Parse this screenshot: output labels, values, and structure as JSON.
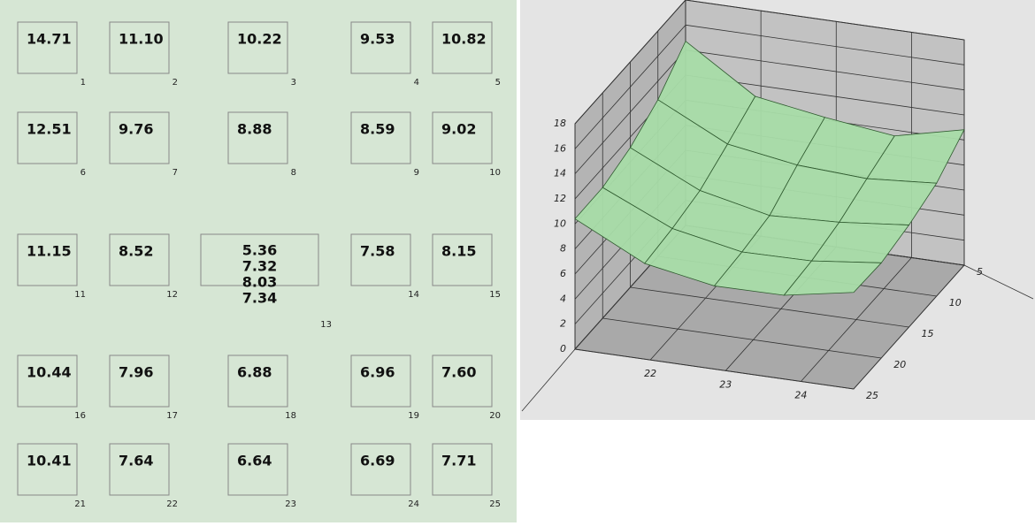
{
  "cells": [
    {
      "values": [
        "14.71"
      ],
      "index": 1
    },
    {
      "values": [
        "11.10"
      ],
      "index": 2
    },
    {
      "values": [
        "10.22"
      ],
      "index": 3
    },
    {
      "values": [
        "9.53"
      ],
      "index": 4
    },
    {
      "values": [
        "10.82"
      ],
      "index": 5
    },
    {
      "values": [
        "12.51"
      ],
      "index": 6
    },
    {
      "values": [
        "9.76"
      ],
      "index": 7
    },
    {
      "values": [
        "8.88"
      ],
      "index": 8
    },
    {
      "values": [
        "8.59"
      ],
      "index": 9
    },
    {
      "values": [
        "9.02"
      ],
      "index": 10
    },
    {
      "values": [
        "11.15"
      ],
      "index": 11
    },
    {
      "values": [
        "8.52"
      ],
      "index": 12
    },
    {
      "values": [
        "5.36",
        "7.32",
        "8.03",
        "7.34"
      ],
      "colors": [
        "#b01c1c",
        "#2e9e3e",
        "#3a3ac0",
        "#2e9e3e"
      ],
      "index": 13
    },
    {
      "values": [
        "7.58"
      ],
      "index": 14
    },
    {
      "values": [
        "8.15"
      ],
      "index": 15
    },
    {
      "values": [
        "10.44"
      ],
      "index": 16
    },
    {
      "values": [
        "7.96"
      ],
      "index": 17
    },
    {
      "values": [
        "6.88"
      ],
      "index": 18
    },
    {
      "values": [
        "6.96"
      ],
      "index": 19
    },
    {
      "values": [
        "7.60"
      ],
      "index": 20
    },
    {
      "values": [
        "10.41"
      ],
      "index": 21
    },
    {
      "values": [
        "7.64"
      ],
      "index": 22
    },
    {
      "values": [
        "6.64"
      ],
      "index": 23
    },
    {
      "values": [
        "6.69"
      ],
      "index": 24
    },
    {
      "values": [
        "7.71"
      ],
      "index": 25
    }
  ],
  "chart_data": {
    "type": "surface3d",
    "color": "#a8dca8",
    "xlim": [
      21,
      24.7
    ],
    "xticks": [
      22,
      23,
      24
    ],
    "ylim": [
      5,
      25
    ],
    "yticks": [
      5,
      10,
      15,
      20,
      25
    ],
    "zlim": [
      0,
      18
    ],
    "zticks": [
      0,
      2,
      4,
      6,
      8,
      10,
      12,
      14,
      16,
      18
    ],
    "grid": true
  }
}
